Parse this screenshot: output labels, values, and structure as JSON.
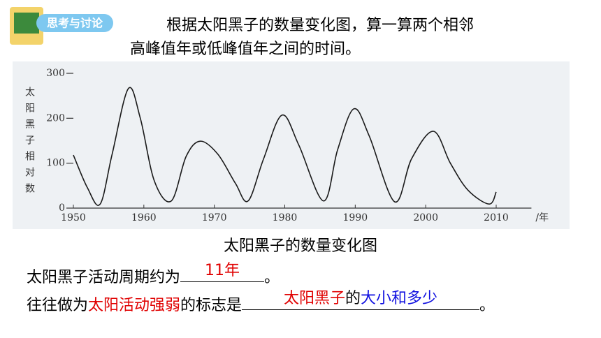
{
  "badge": "思考与讨论",
  "prompt": [
    "根据太阳黑子的数量变化图，算一算两个相邻",
    "高峰值年或低峰值年之间的时间。"
  ],
  "chart_data": {
    "type": "line",
    "y_label": "太阳黑子相对数",
    "x_label": "/年",
    "x": [
      1950,
      1952,
      1953.8,
      1955.5,
      1957.8,
      1959.5,
      1961.5,
      1963.9,
      1966,
      1968,
      1970.5,
      1973,
      1974.8,
      1977,
      1979.6,
      1982,
      1985.5,
      1987.5,
      1989.8,
      1992,
      1995.6,
      1998,
      2001.1,
      2003.5,
      2006,
      2009,
      2010
    ],
    "values": [
      118,
      45,
      9,
      120,
      266,
      200,
      60,
      16,
      115,
      149,
      120,
      55,
      16,
      110,
      207,
      140,
      16,
      130,
      221,
      160,
      14,
      110,
      171,
      100,
      40,
      9,
      36
    ],
    "color": "#1a1a1a",
    "xlim": [
      1950,
      2015
    ],
    "xticks": [
      1950,
      1960,
      1970,
      1980,
      1990,
      2000,
      2010
    ],
    "ylim": [
      0,
      300
    ],
    "yticks": [
      0,
      100,
      200,
      300
    ]
  },
  "caption": "太阳黑子的数量变化图",
  "questions": [
    {
      "prefix": [
        {
          "text": "太阳黑子活动周期约为",
          "color": "#000000"
        }
      ],
      "answer": [
        {
          "text": "11年",
          "color": "#e00000"
        }
      ],
      "end": "。"
    },
    {
      "prefix": [
        {
          "text": "往往做为",
          "color": "#000000"
        },
        {
          "text": "太阳活动强弱",
          "color": "#e00000"
        },
        {
          "text": "的标志是",
          "color": "#000000"
        }
      ],
      "answer": [
        {
          "text": "太阳黑子",
          "color": "#e00000"
        },
        {
          "text": "的",
          "color": "#000000"
        },
        {
          "text": "大小和多少",
          "color": "#1010e0"
        }
      ],
      "end": "。"
    }
  ]
}
